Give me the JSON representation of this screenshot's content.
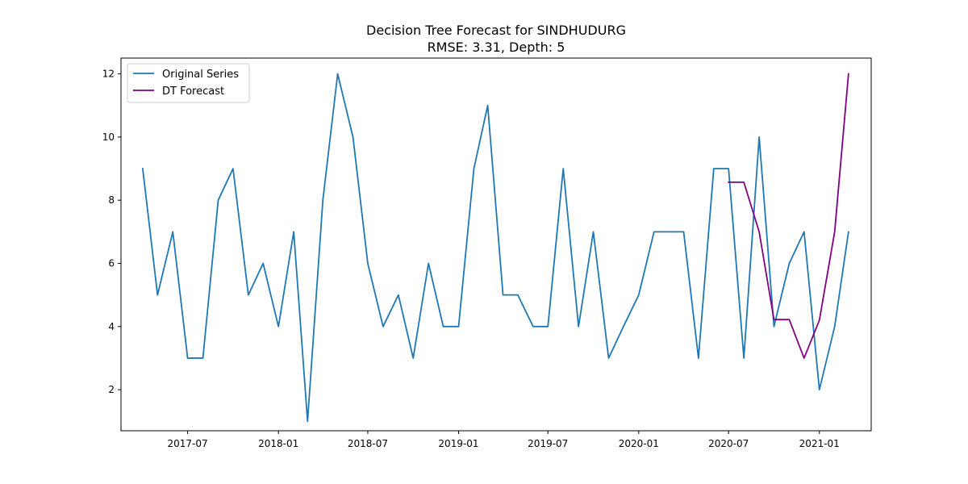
{
  "chart_data": {
    "type": "line",
    "title": "Decision Tree Forecast for SINDHUDURG",
    "subtitle": "RMSE: 3.31, Depth: 5",
    "xlabel": "",
    "ylabel": "",
    "xlim": [
      "2017-02-16",
      "2021-04-16"
    ],
    "ylim": [
      0.7,
      12.5
    ],
    "xticks": [
      "2017-07",
      "2018-01",
      "2018-07",
      "2019-01",
      "2019-07",
      "2020-01",
      "2020-07",
      "2021-01"
    ],
    "yticks": [
      2,
      4,
      6,
      8,
      10,
      12
    ],
    "grid": false,
    "legend": "top-left",
    "series": [
      {
        "name": "Original Series",
        "color": "#1f77b4",
        "x": [
          "2017-04",
          "2017-05",
          "2017-06",
          "2017-07",
          "2017-08",
          "2017-09",
          "2017-10",
          "2017-11",
          "2017-12",
          "2018-01",
          "2018-02",
          "2018-03",
          "2018-04",
          "2018-05",
          "2018-06",
          "2018-07",
          "2018-08",
          "2018-09",
          "2018-10",
          "2018-11",
          "2018-12",
          "2019-01",
          "2019-02",
          "2019-03",
          "2019-04",
          "2019-05",
          "2019-06",
          "2019-07",
          "2019-08",
          "2019-09",
          "2019-10",
          "2019-11",
          "2019-12",
          "2020-01",
          "2020-02",
          "2020-03",
          "2020-04",
          "2020-05",
          "2020-06",
          "2020-07",
          "2020-08",
          "2020-09",
          "2020-10",
          "2020-11",
          "2020-12",
          "2021-01",
          "2021-02",
          "2021-03"
        ],
        "values": [
          9,
          5,
          7,
          3,
          3,
          8,
          9,
          5,
          6,
          4,
          7,
          1,
          8,
          12,
          10,
          6,
          4,
          5,
          3,
          6,
          4,
          4,
          9,
          11,
          5,
          5,
          4,
          4,
          9,
          4,
          7,
          3,
          4,
          5,
          7,
          7,
          7,
          3,
          9,
          9,
          3,
          10,
          4,
          6,
          7,
          2,
          4,
          7
        ]
      },
      {
        "name": "DT Forecast",
        "color": "#800080",
        "x": [
          "2020-07",
          "2020-08",
          "2020-09",
          "2020-10",
          "2020-11",
          "2020-12",
          "2021-01",
          "2021-02",
          "2021-03"
        ],
        "values": [
          8.57,
          8.57,
          7,
          4.22,
          4.22,
          3,
          4.2,
          7,
          12
        ]
      }
    ]
  }
}
